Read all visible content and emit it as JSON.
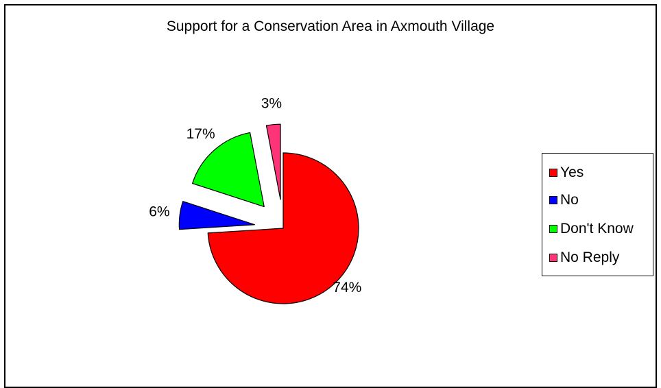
{
  "chart_data": {
    "type": "pie",
    "title": "Support for a Conservation Area in Axmouth Village",
    "categories": [
      "Yes",
      "No",
      "Don't Know",
      "No Reply"
    ],
    "values": [
      74,
      6,
      17,
      3
    ],
    "value_labels": [
      "74%",
      "6%",
      "17%",
      "3%"
    ],
    "colors": [
      "#ff0000",
      "#0000ff",
      "#00ff00",
      "#ff3377"
    ],
    "exploded": [
      false,
      true,
      true,
      true
    ],
    "legend_position": "right"
  }
}
